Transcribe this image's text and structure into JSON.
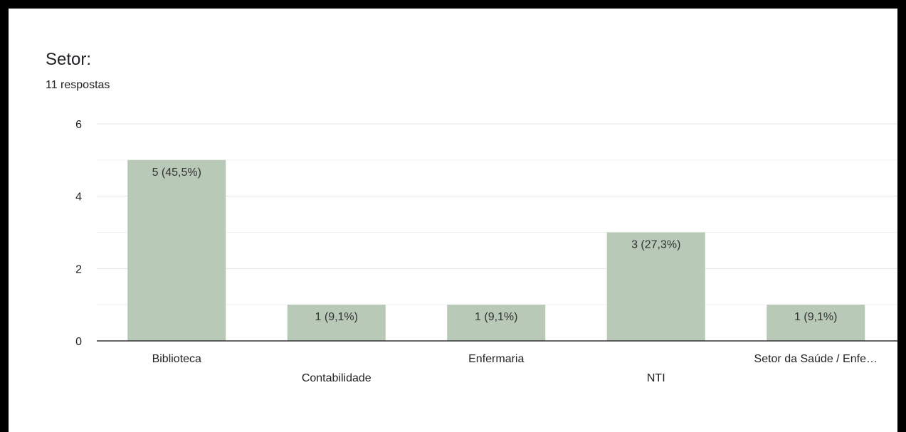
{
  "header": {
    "title": "Setor:",
    "responses": "11 respostas"
  },
  "colors": {
    "bar": "#b8c9b7",
    "axis": "#333333",
    "grid_major": "#e4e4e4",
    "grid_minor": "#f0f0f0",
    "text": "#202124"
  },
  "chart_data": {
    "type": "bar",
    "categories": [
      "Biblioteca",
      "Contabilidade",
      "Enfermaria",
      "NTI",
      "Setor da Saúde / Enfe…"
    ],
    "values": [
      5,
      1,
      1,
      3,
      1
    ],
    "data_labels": [
      "5 (45,5%)",
      "1 (9,1%)",
      "1 (9,1%)",
      "3 (27,3%)",
      "1 (9,1%)"
    ],
    "y_ticks": [
      0,
      2,
      4,
      6
    ],
    "ylim": [
      0,
      6
    ],
    "grid": true,
    "legend": "none"
  }
}
